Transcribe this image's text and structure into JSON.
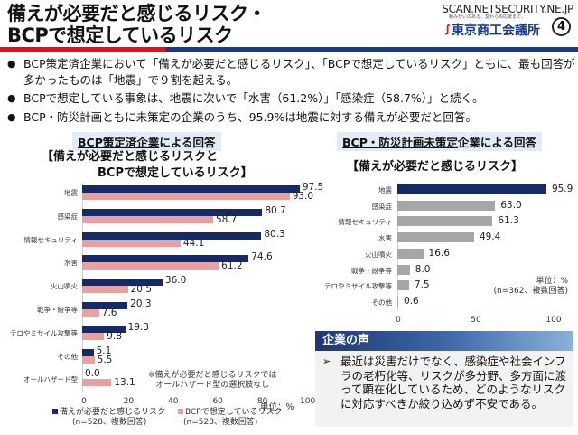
{
  "header": {
    "title_line1": "備えが必要だと感じるリスク・",
    "title_line2": "BCPで想定しているリスク",
    "watermark": "SCAN.NETSECURITY.NE.JP",
    "logo_tagline": "頼みがいのある、変わらぬ応援まで。",
    "logo_text": "東京商工会議所",
    "page_number": "④",
    "colors": {
      "red": "#d7151e",
      "blue": "#1b3b7e"
    }
  },
  "bullets": [
    "BCP策定済企業において「備えが必要だと感じるリスク」、「BCPで想定しているリスク」ともに、最も回答が多かったものは「地震」で９割を超える。",
    "BCPで想定している事象は、地震に次いで「水害（61.2%）」「感染症（58.7%）」と続く。",
    "BCP・防災計画ともに未策定の企業のうち、95.9%は地震に対する備えが必要だと回答。"
  ],
  "bullet_glyph": "●",
  "left_section": {
    "head_underlined": "BCP策定済企業",
    "head_rest": "による回答",
    "chart_title_line1": "【備えが必要だと感じるリスクと",
    "chart_title_line2": "BCPで想定しているリスク】",
    "note_line1": "※備えが必要だと感じるリスクでは",
    "note_line2": "オールハザード型の選択肢なし",
    "unit": "単位：%",
    "legend": [
      {
        "label": "備えが必要だと感じるリスク",
        "sub": "(n=528、複数回答)"
      },
      {
        "label": "BCPで想定しているリスク",
        "sub": "(n=528、複数回答)"
      }
    ]
  },
  "right_section": {
    "head_underlined": "BCP・防災計画未策定",
    "head_rest": "企業による回答",
    "chart_title": "【備えが必要だと感じるリスク】",
    "unit": "単位：%",
    "n_note": "(n=362、複数回答)"
  },
  "voice": {
    "title": "企業の声",
    "arrow": "➢",
    "text": "最近は災害だけでなく、感染症や社会インフラの老朽化等、リスクが多分野、多方面に渡って顕在化しているため、どのようなリスクに対応すべきか絞り込めず不安である。"
  },
  "chart_data": [
    {
      "type": "bar",
      "orientation": "horizontal",
      "title": "【備えが必要だと感じるリスクと BCPで想定しているリスク】",
      "categories": [
        "地震",
        "感染症",
        "情報セキュリティ",
        "水害",
        "火山噴火",
        "戦争・紛争等",
        "テロやミサイル攻撃等",
        "その他",
        "オールハザード型"
      ],
      "series": [
        {
          "name": "備えが必要だと感じるリスク",
          "color": "#162a66",
          "values": [
            97.5,
            80.7,
            80.3,
            74.6,
            36.0,
            20.3,
            19.3,
            5.1,
            0.0
          ],
          "labels": [
            "97.5",
            "80.7",
            "80.3",
            "74.6",
            "36.0",
            "20.3",
            "19.3",
            "5.1",
            "0.0"
          ]
        },
        {
          "name": "BCPで想定しているリスク",
          "color": "#e8a0a0",
          "values": [
            93.0,
            58.7,
            44.1,
            61.2,
            20.5,
            7.6,
            9.8,
            5.5,
            13.1
          ],
          "labels": [
            "93.0",
            "58.7",
            "44.1",
            "61.2",
            "20.5",
            "7.6",
            "9.8",
            "5.5",
            "13.1"
          ]
        }
      ],
      "xlim": [
        0,
        100
      ],
      "xticks": [
        "0",
        "20",
        "40",
        "60",
        "80",
        "100"
      ],
      "xlabel": "単位：%",
      "legend": "bottom"
    },
    {
      "type": "bar",
      "orientation": "horizontal",
      "title": "【備えが必要だと感じるリスク】",
      "categories": [
        "地震",
        "感染症",
        "情報セキュリティ",
        "水害",
        "火山噴火",
        "戦争・紛争等",
        "テロやミサイル攻撃等",
        "その他"
      ],
      "values": [
        95.9,
        63.0,
        61.3,
        49.4,
        16.6,
        8.0,
        7.5,
        0.6
      ],
      "labels": [
        "95.9",
        "63.0",
        "61.3",
        "49.4",
        "16.6",
        "8.0",
        "7.5",
        "0.6"
      ],
      "colors": [
        "#162a66",
        "#a6a6a6",
        "#a6a6a6",
        "#a6a6a6",
        "#a6a6a6",
        "#a6a6a6",
        "#a6a6a6",
        "#a6a6a6"
      ],
      "xlim": [
        0,
        100
      ],
      "xticks": [
        "0",
        "50",
        "100"
      ],
      "xlabel": "単位：%"
    }
  ]
}
